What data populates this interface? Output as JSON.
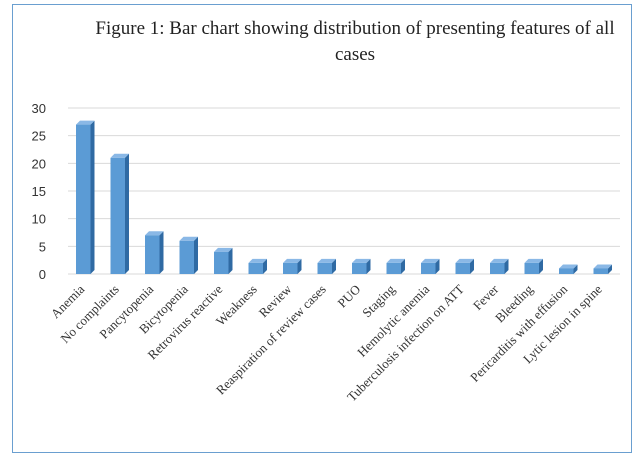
{
  "chart_data": {
    "type": "bar",
    "title": "Figure 1: Bar chart showing distribution of presenting features of all cases",
    "categories": [
      "Anemia",
      "No complaints",
      "Pancytopenia",
      "Bicytopenia",
      "Retrovirus reactive",
      "Weakness",
      "Review",
      "Reaspiration of review cases",
      "PUO",
      "Staging",
      "Hemolytic anemia",
      "Tuberculosis infection on ATT",
      "Fever",
      "Bleeding",
      "Pericarditis with effusion",
      "Lytic lesion in spine"
    ],
    "values": [
      27,
      21,
      7,
      6,
      4,
      2,
      2,
      2,
      2,
      2,
      2,
      2,
      2,
      2,
      1,
      1
    ],
    "ylim": [
      0,
      30
    ],
    "yticks": [
      0,
      5,
      10,
      15,
      20,
      25,
      30
    ],
    "grid": true,
    "bar_style": "3d",
    "colors": {
      "bar_front": "#5b9bd5",
      "bar_side": "#2f6aa3",
      "bar_top": "#8ab8e6",
      "grid": "#d9d9d9",
      "frame": "#6a9fd0"
    }
  }
}
